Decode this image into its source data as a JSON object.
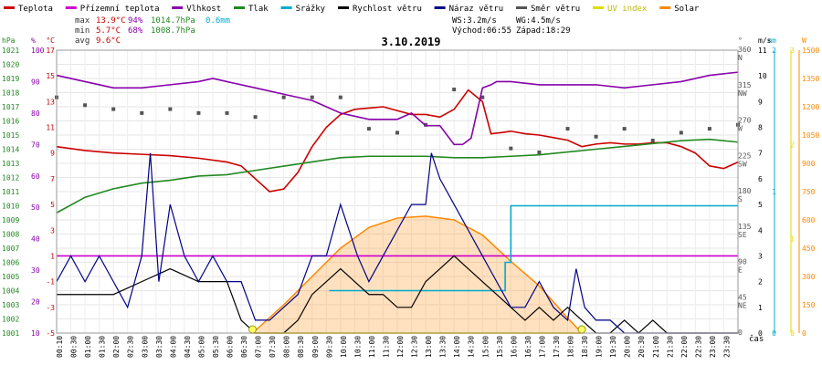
{
  "chart_data": {
    "type": "line",
    "title": "3.10.2019",
    "legend": [
      {
        "label": "Teplota",
        "color": "#cc0000"
      },
      {
        "label": "Přízemní teplota",
        "color": "#cc00cc"
      },
      {
        "label": "Vlhkost",
        "color": "#8800aa"
      },
      {
        "label": "Tlak",
        "color": "#228822"
      },
      {
        "label": "Srážky",
        "color": "#00aacc"
      },
      {
        "label": "Rychlost větru",
        "color": "#000000"
      },
      {
        "label": "Náraz větru",
        "color": "#000088"
      },
      {
        "label": "Směr větru",
        "color": "#555555"
      },
      {
        "label": "UV index",
        "color": "#dddd00"
      },
      {
        "label": "Solar",
        "color": "#ff8800"
      }
    ],
    "stats": {
      "max_label": "max",
      "max_temp": "13.9°C",
      "max_hum": "94%",
      "max_press": "1014.7hPa",
      "rain": "0.6mm",
      "min_label": "min",
      "min_temp": "5.7°C",
      "min_hum": "68%",
      "min_press": "1008.7hPa",
      "avg_label": "avg",
      "avg_temp": "9.6°C"
    },
    "wind_info": {
      "ws": "WS:3.2m/s",
      "wg": "WG:4.5m/s",
      "sunrise": "Východ:06:55",
      "sunset": "Západ:18:29"
    },
    "axes": {
      "hpa": {
        "unit": "hPa",
        "ticks": [
          "1021",
          "1020",
          "1019",
          "1018",
          "1017",
          "1016",
          "1015",
          "1014",
          "1013",
          "1012",
          "1011",
          "1010",
          "1009",
          "1008",
          "1007",
          "1006",
          "1005",
          "1004",
          "1003",
          "1002",
          "1001"
        ],
        "color": "#228822"
      },
      "pct": {
        "unit": "%",
        "ticks": [
          "100",
          "90",
          "80",
          "70",
          "60",
          "50",
          "40",
          "30",
          "20",
          "10"
        ],
        "color": "#8800aa"
      },
      "degc": {
        "unit": "°C",
        "ticks": [
          "17",
          "15",
          "13",
          "11",
          "9",
          "7",
          "5",
          "3",
          "1",
          "-1",
          "-3",
          "-5"
        ],
        "color": "#cc0000"
      },
      "dir": {
        "unit": "°",
        "ticks": [
          {
            "v": "360",
            "l": "N"
          },
          {
            "v": "315",
            "l": "NW"
          },
          {
            "v": "270",
            "l": "W"
          },
          {
            "v": "225",
            "l": "SW"
          },
          {
            "v": "180",
            "l": "S"
          },
          {
            "v": "135",
            "l": "SE"
          },
          {
            "v": "90",
            "l": "E"
          },
          {
            "v": "45",
            "l": "NE"
          },
          {
            "v": "0",
            "l": ""
          }
        ],
        "color": "#555555"
      },
      "mm": {
        "unit": "mm",
        "ticks": [
          "2",
          "1",
          "0"
        ],
        "color": "#00aacc"
      },
      "ms": {
        "unit": "m/s",
        "ticks": [
          "11",
          "10",
          "9",
          "8",
          "7",
          "6",
          "5",
          "4",
          "3",
          "2",
          "1",
          "0"
        ],
        "color": "#000000"
      },
      "uv": {
        "unit": "",
        "ticks": [
          "3",
          "2",
          "1",
          "0"
        ],
        "color": "#dddd00"
      },
      "w": {
        "unit": "W",
        "ticks": [
          "1500",
          "1350",
          "1200",
          "1050",
          "900",
          "750",
          "600",
          "450",
          "300",
          "150",
          "0"
        ],
        "color": "#ff8800"
      }
    },
    "xlabel": "čas",
    "time_ticks": [
      "00:10",
      "00:30",
      "01:00",
      "01:30",
      "02:00",
      "02:30",
      "03:00",
      "03:30",
      "04:00",
      "04:30",
      "05:00",
      "05:30",
      "06:00",
      "06:30",
      "07:00",
      "07:30",
      "08:00",
      "08:30",
      "09:00",
      "09:30",
      "10:00",
      "10:30",
      "11:00",
      "11:30",
      "12:00",
      "12:30",
      "13:00",
      "13:30",
      "14:00",
      "14:30",
      "15:00",
      "15:30",
      "16:00",
      "16:30",
      "17:00",
      "17:30",
      "18:00",
      "18:30",
      "19:00",
      "19:30",
      "20:00",
      "20:30",
      "21:00",
      "21:30",
      "22:00",
      "22:30",
      "23:00",
      "23:30"
    ],
    "series": [
      {
        "name": "Teplota",
        "color": "#cc0000",
        "axis": "degc",
        "x": [
          0,
          1,
          2,
          3,
          4,
          5,
          6,
          6.5,
          7,
          7.5,
          8,
          8.5,
          9,
          9.5,
          10,
          10.5,
          11,
          11.5,
          12,
          12.5,
          13,
          13.5,
          14,
          14.5,
          15,
          15.3,
          15.7,
          16,
          16.5,
          17,
          17.5,
          18,
          18.5,
          19,
          19.5,
          20,
          20.5,
          21,
          21.5,
          22,
          22.5,
          23,
          23.5,
          24
        ],
        "y": [
          9.5,
          9.2,
          9.0,
          8.9,
          8.8,
          8.6,
          8.3,
          8.0,
          7.0,
          6.0,
          6.2,
          7.5,
          9.5,
          11.0,
          12.0,
          12.4,
          12.5,
          12.6,
          12.3,
          12.0,
          12.0,
          11.8,
          12.4,
          13.9,
          13.0,
          10.5,
          10.6,
          10.7,
          10.5,
          10.4,
          10.2,
          10.0,
          9.5,
          9.7,
          9.8,
          9.7,
          9.7,
          9.8,
          9.8,
          9.5,
          9.0,
          8.0,
          7.8,
          8.3
        ]
      },
      {
        "name": "Přízemní teplota",
        "color": "#cc00cc",
        "axis": "degc",
        "x": [
          0,
          24
        ],
        "y": [
          1.0,
          1.0
        ]
      },
      {
        "name": "Vlhkost",
        "color": "#8800aa",
        "axis": "pct",
        "x": [
          0,
          1,
          2,
          3,
          4,
          5,
          5.5,
          6,
          7,
          8,
          9,
          10,
          11,
          12,
          12.5,
          13,
          13.5,
          14,
          14.3,
          14.6,
          15,
          15.3,
          15.5,
          16,
          17,
          18,
          19,
          20,
          21,
          22,
          23,
          24
        ],
        "y": [
          92,
          90,
          88,
          88,
          89,
          90,
          91,
          90,
          88,
          86,
          84,
          80,
          78,
          78,
          80,
          76,
          76,
          70,
          70,
          72,
          88,
          89,
          90,
          90,
          89,
          89,
          89,
          88,
          89,
          90,
          92,
          93
        ]
      },
      {
        "name": "Tlak",
        "color": "#228822",
        "axis": "hpa",
        "x": [
          0,
          1,
          2,
          3,
          4,
          5,
          6,
          7,
          8,
          9,
          10,
          11,
          12,
          13,
          14,
          15,
          16,
          17,
          18,
          19,
          20,
          21,
          22,
          23,
          24
        ],
        "y": [
          1009.5,
          1010.6,
          1011.2,
          1011.6,
          1011.8,
          1012.1,
          1012.2,
          1012.5,
          1012.8,
          1013.1,
          1013.4,
          1013.5,
          1013.5,
          1013.5,
          1013.4,
          1013.4,
          1013.5,
          1013.6,
          1013.8,
          1014.0,
          1014.2,
          1014.4,
          1014.6,
          1014.7,
          1014.5
        ]
      },
      {
        "name": "Srážky",
        "color": "#00aacc",
        "axis": "mm",
        "x": [
          9.6,
          15.8,
          15.8,
          16.0,
          16.0,
          24
        ],
        "y": [
          0.3,
          0.3,
          0.5,
          0.5,
          0.9,
          0.9
        ]
      },
      {
        "name": "Rychlost větru",
        "color": "#000000",
        "axis": "ms",
        "x": [
          0,
          1,
          2,
          3,
          4,
          5,
          6,
          6.5,
          7,
          7.5,
          8,
          8.5,
          9,
          9.5,
          10,
          10.5,
          11,
          11.5,
          12,
          12.5,
          13,
          13.5,
          14,
          14.5,
          15,
          15.5,
          16,
          16.5,
          17,
          17.5,
          18,
          18.5,
          19,
          19.5,
          20,
          20.5,
          21,
          21.5,
          22,
          22.5,
          23,
          23.5,
          24
        ],
        "y": [
          1.5,
          1.5,
          1.5,
          2,
          2.5,
          2,
          2,
          0.5,
          0,
          0,
          0,
          0.5,
          1.5,
          2,
          2.5,
          2,
          1.5,
          1.5,
          1,
          1,
          2,
          2.5,
          3,
          2.5,
          2,
          1.5,
          1,
          0.5,
          1,
          0.5,
          1,
          0.5,
          0,
          0,
          0.5,
          0,
          0.5,
          0,
          0,
          0,
          0,
          0,
          0
        ]
      },
      {
        "name": "Náraz větru",
        "color": "#000088",
        "axis": "ms",
        "x": [
          0,
          0.5,
          1,
          1.5,
          2,
          2.5,
          3,
          3.3,
          3.6,
          4,
          4.5,
          5,
          5.5,
          6,
          6.5,
          7,
          7.5,
          8,
          8.5,
          9,
          9.5,
          10,
          10.3,
          10.6,
          11,
          11.5,
          12,
          12.5,
          13,
          13.2,
          13.5,
          14,
          14.5,
          15,
          15.5,
          16,
          16.5,
          17,
          17.5,
          18,
          18.3,
          18.6,
          19,
          19.5,
          20,
          21,
          22,
          23,
          24
        ],
        "y": [
          2,
          3,
          2,
          3,
          2,
          1,
          3,
          7,
          2,
          5,
          3,
          2,
          3,
          2,
          2,
          0.5,
          0.5,
          1,
          1.5,
          3,
          3,
          5,
          4,
          3,
          2,
          3,
          4,
          5,
          5,
          7,
          6,
          5,
          4,
          3,
          2,
          1,
          1,
          2,
          1,
          0.5,
          2.5,
          1,
          0.5,
          0.5,
          0,
          0,
          0,
          0,
          0
        ]
      },
      {
        "name": "Směr větru",
        "color": "#555555",
        "axis": "dir",
        "x": [
          0,
          1,
          2,
          3,
          4,
          5,
          6,
          7,
          8,
          9,
          10,
          11,
          12,
          13,
          14,
          15,
          16,
          17,
          18,
          19,
          20,
          21,
          22,
          23,
          24
        ],
        "y": [
          300,
          290,
          285,
          280,
          285,
          280,
          280,
          275,
          300,
          300,
          300,
          260,
          255,
          265,
          310,
          300,
          235,
          230,
          260,
          250,
          260,
          245,
          255,
          260,
          265
        ]
      },
      {
        "name": "UV index",
        "color": "#dddd00",
        "axis": "uv",
        "x": [
          6.9,
          18.5
        ],
        "y": [
          0,
          0
        ]
      },
      {
        "name": "Solar",
        "color": "#ff8800",
        "axis": "w",
        "x": [
          6.9,
          8,
          9,
          10,
          11,
          12,
          13,
          14,
          15,
          16,
          17,
          18,
          18.5
        ],
        "y": [
          0,
          150,
          300,
          450,
          560,
          610,
          620,
          600,
          520,
          380,
          250,
          80,
          0
        ]
      }
    ]
  }
}
